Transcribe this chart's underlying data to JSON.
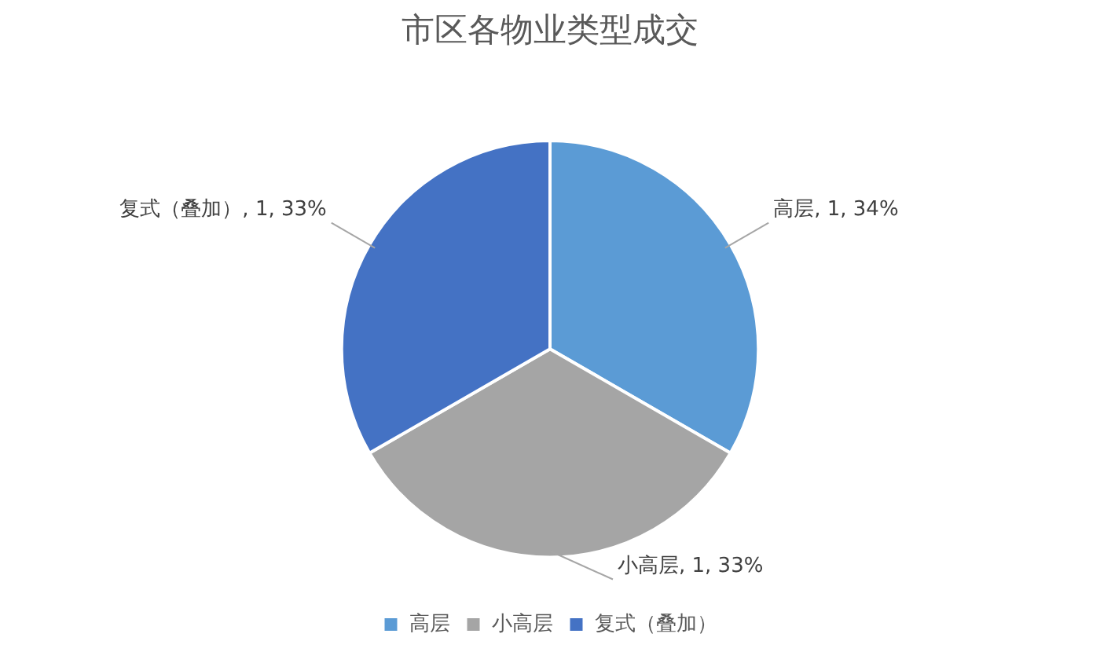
{
  "chart_data": {
    "type": "pie",
    "title": "市区各物业类型成交",
    "categories": [
      "高层",
      "小高层",
      "复式（叠加）"
    ],
    "values": [
      1,
      1,
      1
    ],
    "colors": [
      "#5b9bd5",
      "#a5a5a5",
      "#4472c4"
    ],
    "value_labels": [
      "高层, 1, 34%",
      "小高层, 1, 33%",
      "复式（叠加）, 1, 33%"
    ],
    "legend": "bottom"
  }
}
